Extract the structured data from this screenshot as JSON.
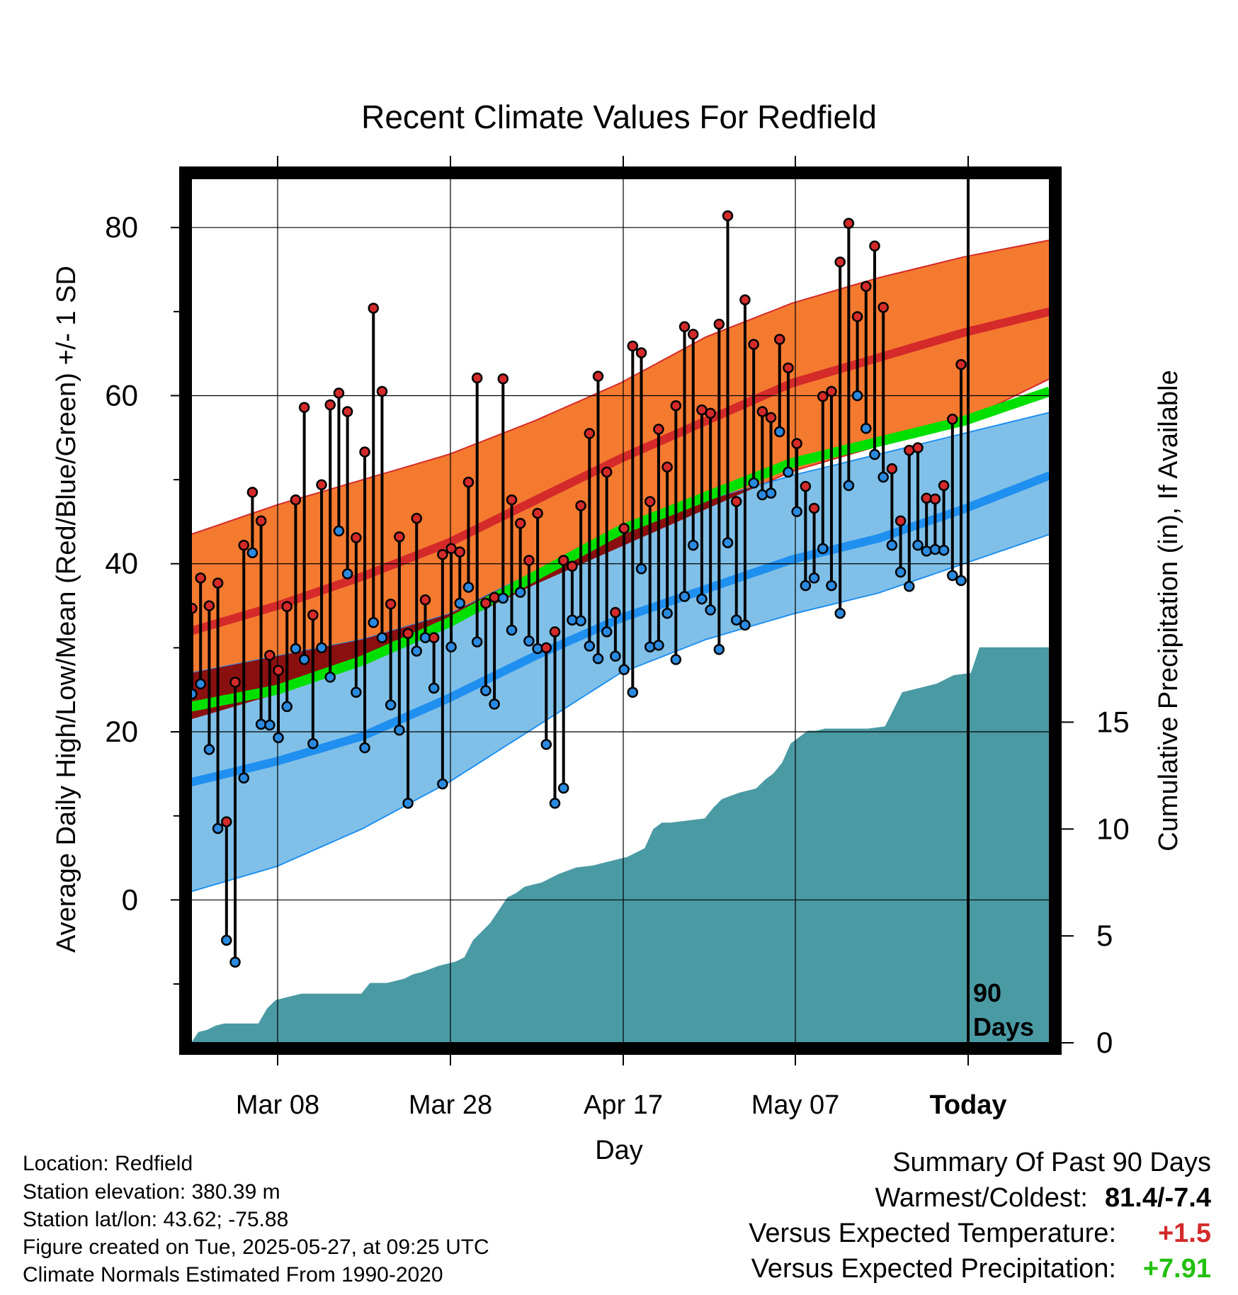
{
  "chart_data": {
    "type": "line",
    "title": "Recent Climate Values For Redfield",
    "xlabel": "Day",
    "ylabel": "Average Daily High/Low/Mean (Red/Blue/Green) +/- 1 SD",
    "y2label": "Cumulative Precipitation (in), If Available",
    "ylim": [
      -17,
      86
    ],
    "y2lim": [
      0,
      40.5
    ],
    "y_ticks": [
      "80",
      "60",
      "40",
      "20",
      "0"
    ],
    "y2_ticks": [
      "15",
      "10",
      "5",
      "0"
    ],
    "x_ticks": [
      "Mar 08",
      "Mar 28",
      "Apr 17",
      "May 07",
      "Today"
    ],
    "grid": true,
    "today_marker_label": [
      "90",
      "Days"
    ],
    "colors": {
      "high_band": "#f47a30",
      "high_mean": "#d42a2a",
      "low_band": "#80c0e8",
      "low_mean": "#2090f0",
      "mean_line": "#00e000",
      "overlap_band": "#8a1010",
      "precip": "#4a9aa4",
      "high_marker": "#d42a2a",
      "low_marker": "#2a8ae0"
    },
    "normals": {
      "day_index": [
        0,
        10,
        20,
        30,
        40,
        50,
        60,
        70,
        80,
        90,
        100
      ],
      "high_mean": [
        32,
        35,
        38.5,
        42.5,
        47.5,
        52.5,
        57,
        61.5,
        64.5,
        67.5,
        70
      ],
      "high_sd_upper": [
        43.5,
        47,
        50,
        53,
        57,
        61.5,
        67,
        71,
        74,
        76.5,
        78.5
      ],
      "high_sd_lower": [
        21.5,
        24.5,
        28,
        32.5,
        37.5,
        42,
        46.5,
        51,
        54,
        57,
        62
      ],
      "low_mean": [
        14,
        16.5,
        19.5,
        24,
        29,
        33.5,
        37,
        40.5,
        43,
        46.5,
        50.5
      ],
      "low_sd_upper": [
        27,
        29,
        31,
        34,
        39,
        44,
        47.5,
        50.5,
        53,
        55.5,
        58
      ],
      "low_sd_lower": [
        1,
        4,
        8.5,
        14,
        20.5,
        27,
        31,
        34,
        36.5,
        40,
        43.5
      ],
      "daily_mean": [
        23,
        25,
        28.5,
        33,
        38.5,
        44,
        48,
        52,
        54.5,
        57,
        60.5
      ]
    },
    "series": [
      {
        "name": "High",
        "values": [
          34.7,
          38.3,
          35,
          37.7,
          9.3,
          25.9,
          42.2,
          48.5,
          45.1,
          29.1,
          27.3,
          34.9,
          47.6,
          58.6,
          33.9,
          49.4,
          58.9,
          60.3,
          58.1,
          43.1,
          53.3,
          70.4,
          60.5,
          35.2,
          43.2,
          31.7,
          45.4,
          35.7,
          31.2,
          41.1,
          41.8,
          41.4,
          49.7,
          62.1,
          35.3,
          36,
          62,
          47.6,
          44.8,
          40.4,
          46,
          30,
          31.9,
          40.4,
          39.7,
          46.9,
          55.5,
          62.3,
          50.9,
          34.2,
          44.2,
          65.9,
          65.1,
          47.4,
          56,
          51.5,
          58.8,
          68.2,
          67.3,
          58.3,
          57.9,
          68.5,
          81.4,
          47.4,
          71.4,
          66.1,
          58.1,
          57.4,
          66.7,
          63.3,
          54.3,
          49.2,
          46.6,
          59.9,
          60.5,
          75.9,
          80.5,
          69.4,
          73,
          77.8,
          70.5,
          51.3,
          45.1,
          53.5,
          53.8,
          47.8,
          47.7,
          49.3,
          57.2,
          63.7
        ]
      },
      {
        "name": "Low",
        "values": [
          24.5,
          25.7,
          17.9,
          8.5,
          -4.8,
          -7.4,
          14.5,
          41.3,
          20.9,
          20.8,
          19.3,
          23,
          29.9,
          28.6,
          18.6,
          30,
          26.5,
          43.9,
          38.8,
          24.7,
          18.1,
          33,
          31.2,
          23.2,
          20.2,
          11.5,
          29.6,
          31.2,
          25.2,
          13.8,
          30.1,
          35.3,
          37.2,
          30.7,
          24.9,
          23.3,
          35.9,
          32.1,
          36.6,
          30.8,
          29.9,
          18.5,
          11.5,
          13.3,
          33.3,
          33.2,
          30.2,
          28.7,
          31.9,
          29,
          27.4,
          24.7,
          39.4,
          30.1,
          30.3,
          34.1,
          28.6,
          36.1,
          42.2,
          35.8,
          34.5,
          29.8,
          42.5,
          33.3,
          32.7,
          49.6,
          48.2,
          48.4,
          55.7,
          50.9,
          46.2,
          37.4,
          38.3,
          41.8,
          37.4,
          34.1,
          49.3,
          60,
          56.1,
          53,
          50.3,
          42.2,
          39,
          37.3,
          42.2,
          41.5,
          41.7,
          41.6,
          38.6,
          38
        ]
      },
      {
        "name": "Cumulative Precipitation",
        "day_index": [
          0,
          1,
          2,
          3,
          5,
          7,
          8,
          9,
          10,
          12,
          14,
          16,
          18,
          19,
          20,
          22,
          24,
          25,
          26,
          28,
          30,
          31,
          32,
          34,
          36,
          37,
          38,
          40,
          42,
          44,
          46,
          48,
          50,
          52,
          53,
          54,
          55,
          57,
          59,
          60,
          61,
          63,
          65,
          66,
          67,
          68,
          69,
          70,
          71,
          72,
          73,
          75,
          78,
          80,
          81,
          82,
          83,
          84,
          86,
          88,
          90,
          91,
          95,
          100
        ],
        "values": [
          0.5,
          0.6,
          0.8,
          0.9,
          0.9,
          0.9,
          1.6,
          2,
          2.1,
          2.3,
          2.3,
          2.3,
          2.3,
          2.3,
          2.8,
          2.8,
          3,
          3.2,
          3.3,
          3.6,
          3.8,
          4,
          4.8,
          5.6,
          6.8,
          7,
          7.3,
          7.5,
          7.9,
          8.2,
          8.3,
          8.5,
          8.7,
          9.1,
          10,
          10.3,
          10.3,
          10.4,
          10.5,
          11,
          11.4,
          11.7,
          11.9,
          12.3,
          12.6,
          13.1,
          14,
          14.3,
          14.6,
          14.6,
          14.7,
          14.7,
          14.7,
          14.8,
          15.6,
          16.4,
          16.5,
          16.6,
          16.8,
          17.2,
          17.3,
          18.5,
          18.5,
          18.5
        ]
      }
    ]
  },
  "footer": {
    "location": "Location: Redfield",
    "elevation": "Station elevation: 380.39 m",
    "latlon": "Station lat/lon: 43.62; -75.88",
    "created": "Figure created on Tue, 2025-05-27, at 09:25 UTC",
    "normals": "Climate Normals Estimated From 1990-2020"
  },
  "summary": {
    "heading": "Summary Of Past 90 Days",
    "warmest_label": "Warmest/Coldest:",
    "warmest_value": "81.4/-7.4",
    "temp_label": "Versus Expected Temperature:",
    "temp_value": "+1.5",
    "temp_color": "#d42a2a",
    "precip_label": "Versus Expected Precipitation:",
    "precip_value": "+7.91",
    "precip_color": "#22c010"
  }
}
